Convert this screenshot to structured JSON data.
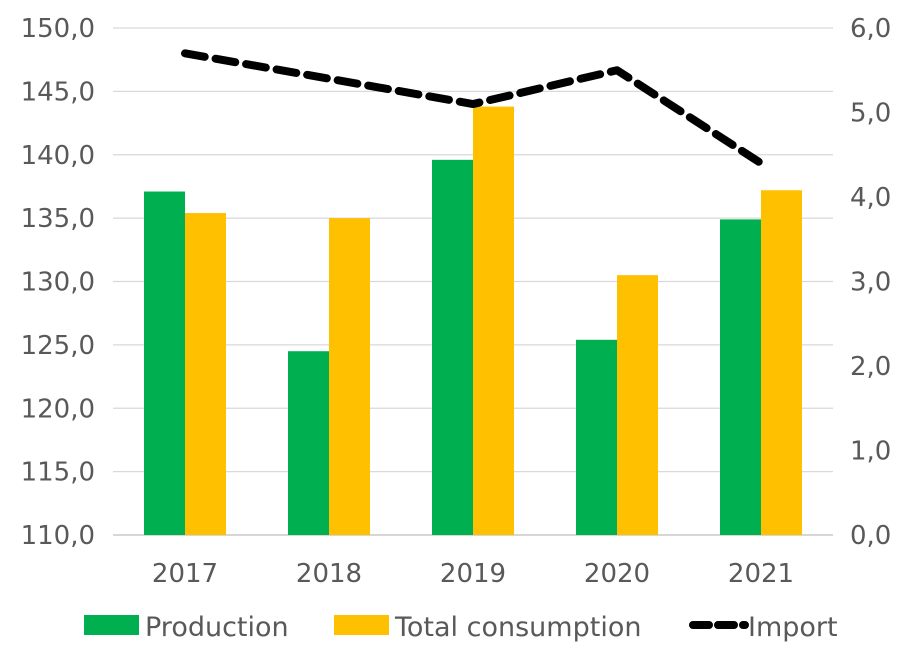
{
  "chart_data": {
    "type": "bar",
    "categories": [
      "2017",
      "2018",
      "2019",
      "2020",
      "2021"
    ],
    "series": [
      {
        "name": "Production",
        "type": "bar",
        "axis": "left",
        "color": "#00b050",
        "values": [
          137.1,
          124.5,
          139.6,
          125.4,
          134.9
        ]
      },
      {
        "name": "Total consumption",
        "type": "bar",
        "axis": "left",
        "color": "#ffc000",
        "values": [
          135.4,
          135.0,
          143.8,
          130.5,
          137.2
        ]
      },
      {
        "name": "Import",
        "type": "line",
        "style": "dashed",
        "axis": "right",
        "color": "#000000",
        "values": [
          5.7,
          5.4,
          5.1,
          5.5,
          4.4
        ]
      }
    ],
    "ylim_left": [
      110,
      150
    ],
    "ylim_right": [
      0,
      6
    ],
    "left_ticks": [
      "110,0",
      "115,0",
      "120,0",
      "125,0",
      "130,0",
      "135,0",
      "140,0",
      "145,0",
      "150,0"
    ],
    "right_ticks": [
      "0,0",
      "1,0",
      "2,0",
      "3,0",
      "4,0",
      "5,0",
      "6,0"
    ],
    "grid": true,
    "legend_position": "bottom"
  }
}
